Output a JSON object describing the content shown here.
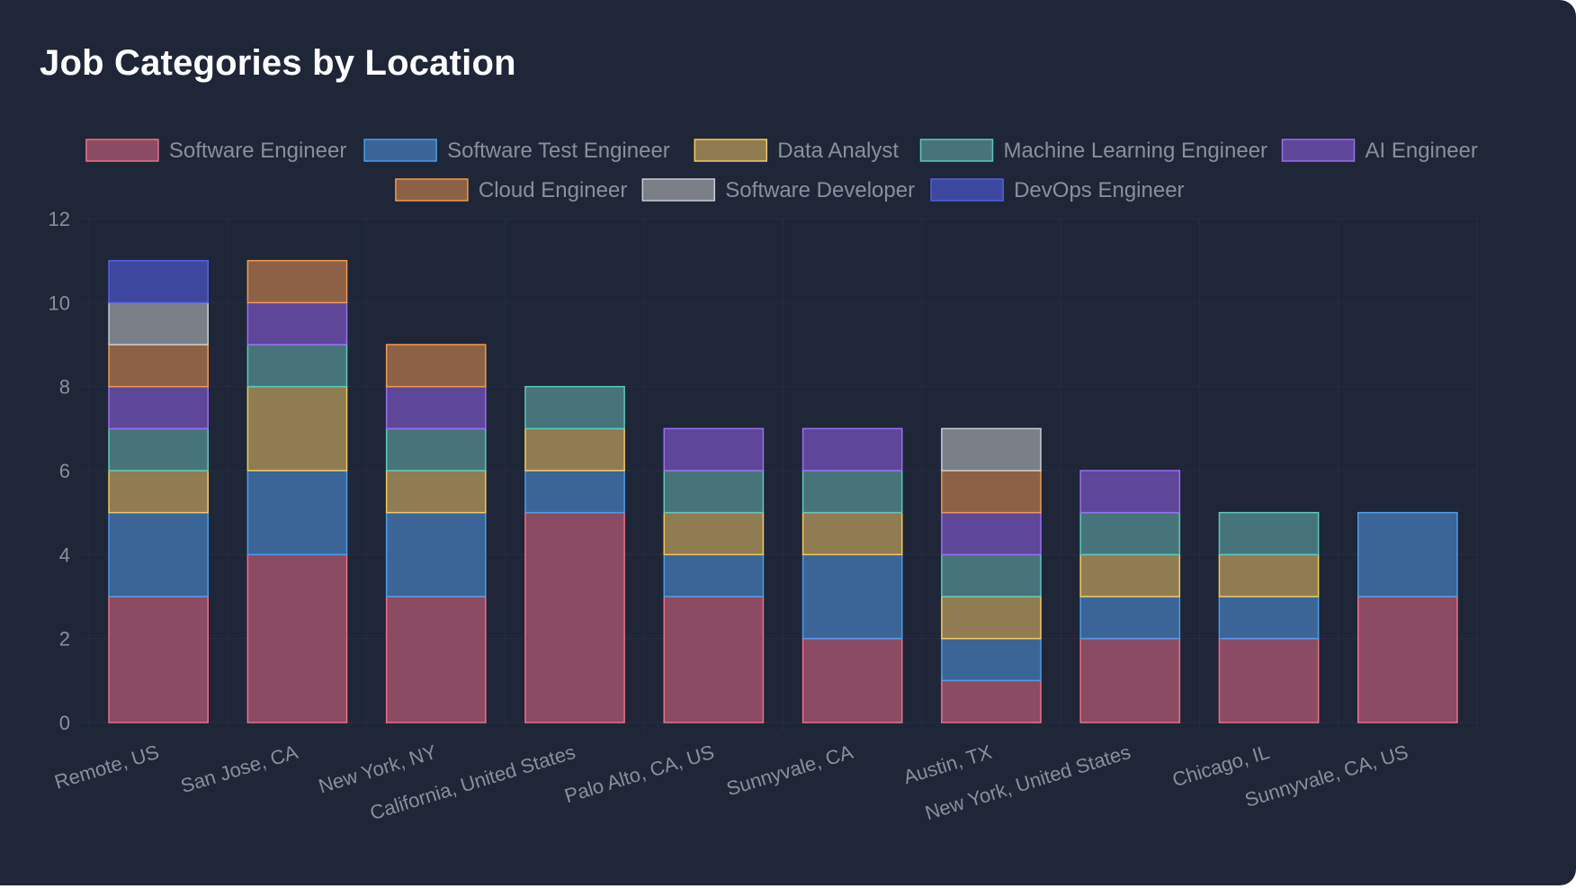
{
  "page": {
    "title": "Job Categories by Location"
  },
  "colors": {
    "background": "#1e2638",
    "title": "#ffffff",
    "text": "#8a8f9a",
    "grid": "#263042"
  },
  "chart_data": {
    "type": "bar",
    "stacked": true,
    "title": "Job Categories by Location",
    "xlabel": "",
    "ylabel": "",
    "ylim": [
      0,
      12
    ],
    "yticks": [
      0,
      2,
      4,
      6,
      8,
      10,
      12
    ],
    "grid": true,
    "legend_position": "top",
    "categories": [
      "Remote, US",
      "San Jose, CA",
      "New York, NY",
      "California, United States",
      "Palo Alto, CA, US",
      "Sunnyvale, CA",
      "Austin, TX",
      "New York, United States",
      "Chicago, IL",
      "Sunnyvale, CA, US"
    ],
    "series": [
      {
        "name": "Software Engineer",
        "color": "#ef6f8a",
        "fill": "#8b4b62",
        "values": [
          3,
          4,
          3,
          5,
          3,
          2,
          1,
          2,
          2,
          3
        ]
      },
      {
        "name": "Software Test Engineer",
        "color": "#4d9de8",
        "fill": "#3a6596",
        "values": [
          2,
          2,
          2,
          1,
          1,
          2,
          1,
          1,
          1,
          2
        ]
      },
      {
        "name": "Data Analyst",
        "color": "#f5c95a",
        "fill": "#8f7c52",
        "values": [
          1,
          2,
          1,
          1,
          1,
          1,
          1,
          1,
          1,
          0
        ]
      },
      {
        "name": "Machine Learning Engineer",
        "color": "#5ec7c0",
        "fill": "#47747a",
        "values": [
          1,
          1,
          1,
          1,
          1,
          1,
          1,
          1,
          1,
          0
        ]
      },
      {
        "name": "AI Engineer",
        "color": "#9b6ff0",
        "fill": "#5e4699",
        "values": [
          1,
          1,
          1,
          0,
          1,
          1,
          1,
          1,
          0,
          0
        ]
      },
      {
        "name": "Cloud Engineer",
        "color": "#f09a4e",
        "fill": "#8c6145",
        "values": [
          1,
          1,
          1,
          0,
          0,
          0,
          1,
          0,
          0,
          0
        ]
      },
      {
        "name": "Software Developer",
        "color": "#c9ccd2",
        "fill": "#7a7f88",
        "values": [
          1,
          0,
          0,
          0,
          0,
          0,
          1,
          0,
          0,
          0
        ]
      },
      {
        "name": "DevOps Engineer",
        "color": "#5561e0",
        "fill": "#3e479e",
        "values": [
          1,
          0,
          0,
          0,
          0,
          0,
          0,
          0,
          0,
          0
        ]
      }
    ]
  }
}
